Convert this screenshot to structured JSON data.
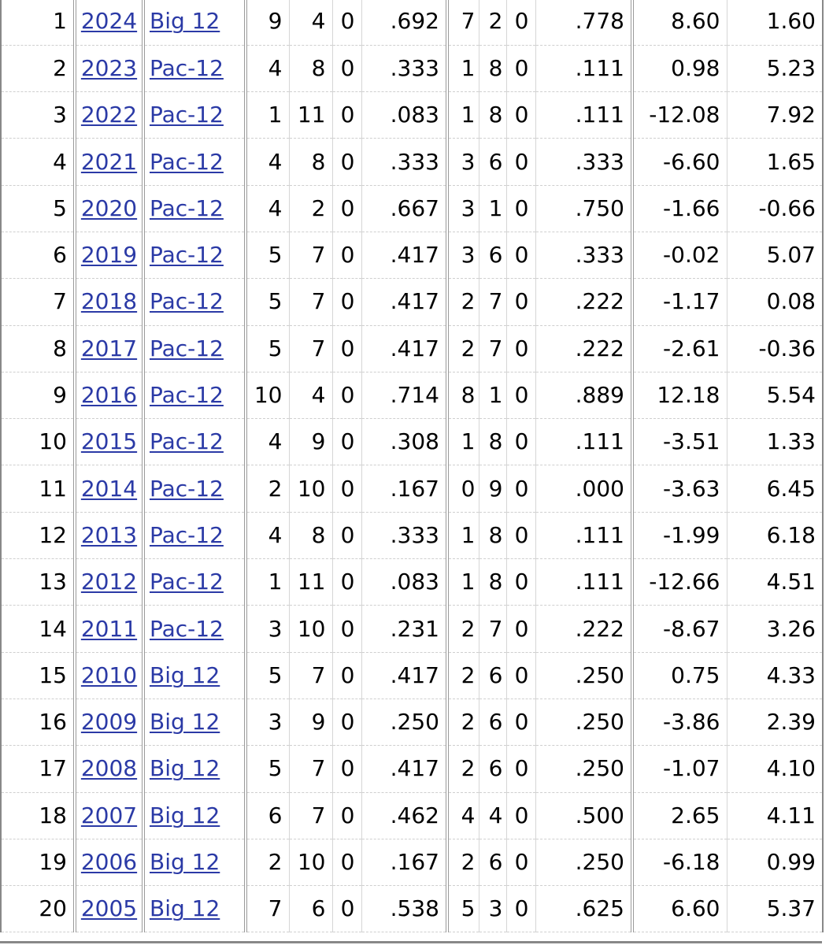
{
  "rows": [
    {
      "rank": "1",
      "year": "2024",
      "conf": "Big 12",
      "w": "9",
      "l": "4",
      "t": "0",
      "pct": ".692",
      "cw": "7",
      "cl": "2",
      "ct": "0",
      "cpct": ".778",
      "srs": "8.60",
      "sos": "1.60"
    },
    {
      "rank": "2",
      "year": "2023",
      "conf": "Pac-12",
      "w": "4",
      "l": "8",
      "t": "0",
      "pct": ".333",
      "cw": "1",
      "cl": "8",
      "ct": "0",
      "cpct": ".111",
      "srs": "0.98",
      "sos": "5.23"
    },
    {
      "rank": "3",
      "year": "2022",
      "conf": "Pac-12",
      "w": "1",
      "l": "11",
      "t": "0",
      "pct": ".083",
      "cw": "1",
      "cl": "8",
      "ct": "0",
      "cpct": ".111",
      "srs": "-12.08",
      "sos": "7.92"
    },
    {
      "rank": "4",
      "year": "2021",
      "conf": "Pac-12",
      "w": "4",
      "l": "8",
      "t": "0",
      "pct": ".333",
      "cw": "3",
      "cl": "6",
      "ct": "0",
      "cpct": ".333",
      "srs": "-6.60",
      "sos": "1.65"
    },
    {
      "rank": "5",
      "year": "2020",
      "conf": "Pac-12",
      "w": "4",
      "l": "2",
      "t": "0",
      "pct": ".667",
      "cw": "3",
      "cl": "1",
      "ct": "0",
      "cpct": ".750",
      "srs": "-1.66",
      "sos": "-0.66"
    },
    {
      "rank": "6",
      "year": "2019",
      "conf": "Pac-12",
      "w": "5",
      "l": "7",
      "t": "0",
      "pct": ".417",
      "cw": "3",
      "cl": "6",
      "ct": "0",
      "cpct": ".333",
      "srs": "-0.02",
      "sos": "5.07"
    },
    {
      "rank": "7",
      "year": "2018",
      "conf": "Pac-12",
      "w": "5",
      "l": "7",
      "t": "0",
      "pct": ".417",
      "cw": "2",
      "cl": "7",
      "ct": "0",
      "cpct": ".222",
      "srs": "-1.17",
      "sos": "0.08"
    },
    {
      "rank": "8",
      "year": "2017",
      "conf": "Pac-12",
      "w": "5",
      "l": "7",
      "t": "0",
      "pct": ".417",
      "cw": "2",
      "cl": "7",
      "ct": "0",
      "cpct": ".222",
      "srs": "-2.61",
      "sos": "-0.36"
    },
    {
      "rank": "9",
      "year": "2016",
      "conf": "Pac-12",
      "w": "10",
      "l": "4",
      "t": "0",
      "pct": ".714",
      "cw": "8",
      "cl": "1",
      "ct": "0",
      "cpct": ".889",
      "srs": "12.18",
      "sos": "5.54"
    },
    {
      "rank": "10",
      "year": "2015",
      "conf": "Pac-12",
      "w": "4",
      "l": "9",
      "t": "0",
      "pct": ".308",
      "cw": "1",
      "cl": "8",
      "ct": "0",
      "cpct": ".111",
      "srs": "-3.51",
      "sos": "1.33"
    },
    {
      "rank": "11",
      "year": "2014",
      "conf": "Pac-12",
      "w": "2",
      "l": "10",
      "t": "0",
      "pct": ".167",
      "cw": "0",
      "cl": "9",
      "ct": "0",
      "cpct": ".000",
      "srs": "-3.63",
      "sos": "6.45"
    },
    {
      "rank": "12",
      "year": "2013",
      "conf": "Pac-12",
      "w": "4",
      "l": "8",
      "t": "0",
      "pct": ".333",
      "cw": "1",
      "cl": "8",
      "ct": "0",
      "cpct": ".111",
      "srs": "-1.99",
      "sos": "6.18"
    },
    {
      "rank": "13",
      "year": "2012",
      "conf": "Pac-12",
      "w": "1",
      "l": "11",
      "t": "0",
      "pct": ".083",
      "cw": "1",
      "cl": "8",
      "ct": "0",
      "cpct": ".111",
      "srs": "-12.66",
      "sos": "4.51"
    },
    {
      "rank": "14",
      "year": "2011",
      "conf": "Pac-12",
      "w": "3",
      "l": "10",
      "t": "0",
      "pct": ".231",
      "cw": "2",
      "cl": "7",
      "ct": "0",
      "cpct": ".222",
      "srs": "-8.67",
      "sos": "3.26"
    },
    {
      "rank": "15",
      "year": "2010",
      "conf": "Big 12",
      "w": "5",
      "l": "7",
      "t": "0",
      "pct": ".417",
      "cw": "2",
      "cl": "6",
      "ct": "0",
      "cpct": ".250",
      "srs": "0.75",
      "sos": "4.33"
    },
    {
      "rank": "16",
      "year": "2009",
      "conf": "Big 12",
      "w": "3",
      "l": "9",
      "t": "0",
      "pct": ".250",
      "cw": "2",
      "cl": "6",
      "ct": "0",
      "cpct": ".250",
      "srs": "-3.86",
      "sos": "2.39"
    },
    {
      "rank": "17",
      "year": "2008",
      "conf": "Big 12",
      "w": "5",
      "l": "7",
      "t": "0",
      "pct": ".417",
      "cw": "2",
      "cl": "6",
      "ct": "0",
      "cpct": ".250",
      "srs": "-1.07",
      "sos": "4.10"
    },
    {
      "rank": "18",
      "year": "2007",
      "conf": "Big 12",
      "w": "6",
      "l": "7",
      "t": "0",
      "pct": ".462",
      "cw": "4",
      "cl": "4",
      "ct": "0",
      "cpct": ".500",
      "srs": "2.65",
      "sos": "4.11"
    },
    {
      "rank": "19",
      "year": "2006",
      "conf": "Big 12",
      "w": "2",
      "l": "10",
      "t": "0",
      "pct": ".167",
      "cw": "2",
      "cl": "6",
      "ct": "0",
      "cpct": ".250",
      "srs": "-6.18",
      "sos": "0.99"
    },
    {
      "rank": "20",
      "year": "2005",
      "conf": "Big 12",
      "w": "7",
      "l": "6",
      "t": "0",
      "pct": ".538",
      "cw": "5",
      "cl": "3",
      "ct": "0",
      "cpct": ".625",
      "srs": "6.60",
      "sos": "5.37"
    }
  ]
}
